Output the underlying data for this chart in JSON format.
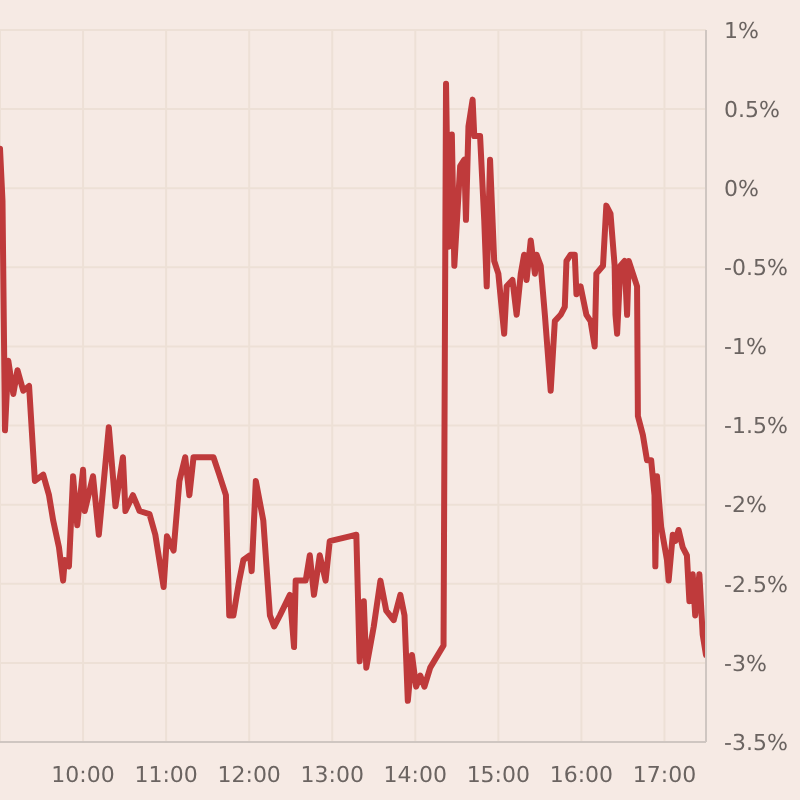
{
  "chart_data": {
    "type": "line",
    "color": "#bf3a3b",
    "x": [
      9.0,
      9.03,
      9.06,
      9.1,
      9.16,
      9.21,
      9.28,
      9.35,
      9.42,
      9.52,
      9.59,
      9.64,
      9.71,
      9.76,
      9.78,
      9.83,
      9.88,
      9.93,
      10.0,
      10.02,
      10.12,
      10.19,
      10.31,
      10.39,
      10.48,
      10.51,
      10.6,
      10.68,
      10.8,
      10.87,
      10.97,
      11.01,
      11.09,
      11.16,
      11.23,
      11.28,
      11.33,
      11.57,
      11.64,
      11.72,
      11.76,
      11.81,
      11.88,
      11.93,
      12.01,
      12.03,
      12.08,
      12.17,
      12.25,
      12.3,
      12.37,
      12.49,
      12.54,
      12.56,
      12.68,
      12.73,
      12.78,
      12.85,
      12.92,
      12.97,
      13.21,
      13.29,
      13.33,
      13.38,
      13.41,
      13.5,
      13.58,
      13.65,
      13.74,
      13.82,
      13.87,
      13.91,
      13.96,
      14.01,
      14.06,
      14.11,
      14.18,
      14.34,
      14.37,
      14.4,
      14.44,
      14.47,
      14.54,
      14.59,
      14.61,
      14.64,
      14.69,
      14.71,
      14.78,
      14.83,
      14.86,
      14.9,
      14.95,
      15.0,
      15.07,
      15.1,
      15.17,
      15.22,
      15.27,
      15.31,
      15.34,
      15.39,
      15.44,
      15.46,
      15.51,
      15.56,
      15.63,
      15.68,
      15.75,
      15.8,
      15.82,
      15.87,
      15.92,
      15.94,
      15.99,
      16.06,
      16.11,
      16.16,
      16.18,
      16.26,
      16.3,
      16.35,
      16.4,
      16.41,
      16.43,
      16.47,
      16.52,
      16.55,
      16.57,
      16.62,
      16.67,
      16.68,
      16.74,
      16.79,
      16.84,
      16.88,
      16.89,
      16.91,
      16.96,
      17.03,
      17.05,
      17.1,
      17.13,
      17.17,
      17.22,
      17.27,
      17.3,
      17.34,
      17.37,
      17.42,
      17.46,
      17.5
    ],
    "values": [
      0.25,
      -0.08,
      -1.53,
      -1.09,
      -1.3,
      -1.15,
      -1.28,
      -1.25,
      -1.85,
      -1.81,
      -1.94,
      -2.1,
      -2.27,
      -2.48,
      -2.35,
      -2.39,
      -1.82,
      -2.13,
      -1.78,
      -2.04,
      -1.82,
      -2.19,
      -1.51,
      -2.01,
      -1.7,
      -2.04,
      -1.94,
      -2.04,
      -2.06,
      -2.19,
      -2.52,
      -2.2,
      -2.29,
      -1.85,
      -1.7,
      -1.94,
      -1.7,
      -1.7,
      -1.81,
      -1.94,
      -2.7,
      -2.7,
      -2.48,
      -2.35,
      -2.32,
      -2.42,
      -1.85,
      -2.1,
      -2.7,
      -2.77,
      -2.7,
      -2.57,
      -2.9,
      -2.48,
      -2.48,
      -2.32,
      -2.57,
      -2.32,
      -2.48,
      -2.23,
      -2.2,
      -2.19,
      -2.99,
      -2.61,
      -3.03,
      -2.77,
      -2.48,
      -2.67,
      -2.73,
      -2.57,
      -2.7,
      -3.24,
      -2.95,
      -3.15,
      -3.08,
      -3.15,
      -3.03,
      -2.89,
      0.66,
      -0.37,
      0.34,
      -0.49,
      0.14,
      0.18,
      -0.2,
      0.39,
      0.56,
      0.33,
      0.33,
      -0.2,
      -0.62,
      0.18,
      -0.46,
      -0.54,
      -0.92,
      -0.62,
      -0.58,
      -0.8,
      -0.54,
      -0.42,
      -0.58,
      -0.33,
      -0.54,
      -0.42,
      -0.49,
      -0.8,
      -1.28,
      -0.84,
      -0.8,
      -0.75,
      -0.46,
      -0.42,
      -0.42,
      -0.67,
      -0.62,
      -0.8,
      -0.84,
      -1.0,
      -0.54,
      -0.49,
      -0.11,
      -0.16,
      -0.49,
      -0.8,
      -0.92,
      -0.49,
      -0.46,
      -0.8,
      -0.46,
      -0.54,
      -0.62,
      -1.44,
      -1.56,
      -1.72,
      -1.72,
      -1.94,
      -2.39,
      -1.82,
      -2.14,
      -2.35,
      -2.48,
      -2.19,
      -2.23,
      -2.16,
      -2.27,
      -2.32,
      -2.61,
      -2.44,
      -2.7,
      -2.44,
      -2.82,
      -2.95
    ],
    "xlim": [
      9,
      17.5
    ],
    "xticks": [
      {
        "value": 10,
        "label": "10:00"
      },
      {
        "value": 11,
        "label": "11:00"
      },
      {
        "value": 12,
        "label": "12:00"
      },
      {
        "value": 13,
        "label": "13:00"
      },
      {
        "value": 14,
        "label": "14:00"
      },
      {
        "value": 15,
        "label": "15:00"
      },
      {
        "value": 16,
        "label": "16:00"
      },
      {
        "value": 17,
        "label": "17:00"
      }
    ],
    "ylim": [
      -3.5,
      1
    ],
    "yticks": [
      {
        "value": 1,
        "label": "1%"
      },
      {
        "value": 0.5,
        "label": "0.5%"
      },
      {
        "value": 0,
        "label": "0%"
      },
      {
        "value": -0.5,
        "label": "-0.5%"
      },
      {
        "value": -1,
        "label": "-1%"
      },
      {
        "value": -1.5,
        "label": "-1.5%"
      },
      {
        "value": -2,
        "label": "-2%"
      },
      {
        "value": -2.5,
        "label": "-2.5%"
      },
      {
        "value": -3,
        "label": "-3%"
      },
      {
        "value": -3.5,
        "label": "-3.5%"
      }
    ],
    "grid": true,
    "line_style": "solid"
  }
}
